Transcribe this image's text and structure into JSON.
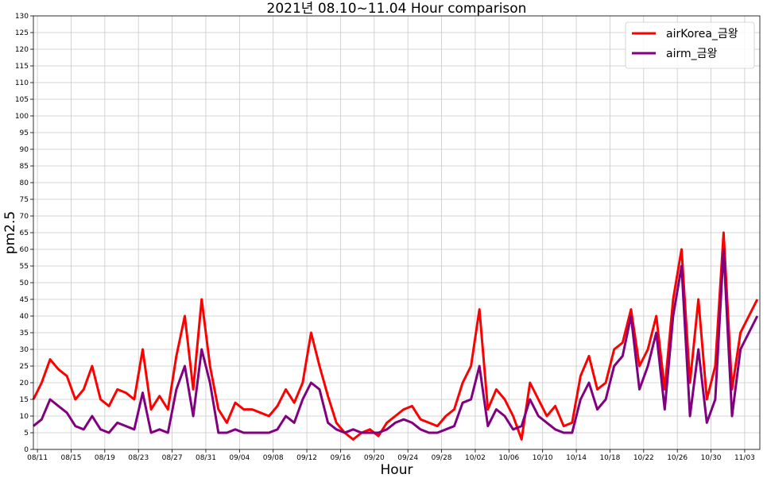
{
  "chart_data": {
    "type": "line",
    "title": "2021년 08.10~11.04 Hour comparison",
    "xlabel": "Hour",
    "ylabel": "pm2.5",
    "ylim": [
      0,
      130
    ],
    "yticks": [
      0,
      5,
      10,
      15,
      20,
      25,
      30,
      35,
      40,
      45,
      50,
      55,
      60,
      65,
      70,
      75,
      80,
      85,
      90,
      95,
      100,
      105,
      110,
      115,
      120,
      125,
      130
    ],
    "x_start": "08/10",
    "x_end": "11/04",
    "xticks": [
      "08/11",
      "08/15",
      "08/19",
      "08/23",
      "08/27",
      "08/31",
      "09/04",
      "09/08",
      "09/12",
      "09/16",
      "09/20",
      "09/24",
      "09/28",
      "10/02",
      "10/06",
      "10/10",
      "10/14",
      "10/18",
      "10/22",
      "10/26",
      "10/30",
      "11/03"
    ],
    "grid": true,
    "legend_position": "top-right",
    "series": [
      {
        "name": "airKorea_금왕",
        "color": "#ff0000",
        "x": [
          "08/10",
          "08/11",
          "08/12",
          "08/13",
          "08/14",
          "08/15",
          "08/16",
          "08/17",
          "08/18",
          "08/19",
          "08/20",
          "08/21",
          "08/22",
          "08/23",
          "08/24",
          "08/25",
          "08/26",
          "08/27",
          "08/28",
          "08/29",
          "08/30",
          "08/31",
          "09/01",
          "09/02",
          "09/03",
          "09/04",
          "09/05",
          "09/06",
          "09/07",
          "09/08",
          "09/09",
          "09/10",
          "09/11",
          "09/12",
          "09/13",
          "09/14",
          "09/15",
          "09/16",
          "09/17",
          "09/18",
          "09/19",
          "09/20",
          "09/21",
          "09/22",
          "09/23",
          "09/24",
          "09/25",
          "09/26",
          "09/27",
          "09/28",
          "09/29",
          "09/30",
          "10/01",
          "10/02",
          "10/03",
          "10/04",
          "10/05",
          "10/06",
          "10/07",
          "10/08",
          "10/09",
          "10/10",
          "10/11",
          "10/12",
          "10/13",
          "10/14",
          "10/15",
          "10/16",
          "10/17",
          "10/18",
          "10/19",
          "10/20",
          "10/21",
          "10/22",
          "10/23",
          "10/24",
          "10/25",
          "10/26",
          "10/27",
          "10/28",
          "10/29",
          "10/30",
          "10/31",
          "11/01",
          "11/02",
          "11/03",
          "11/04"
        ],
        "values": [
          15,
          20,
          27,
          24,
          22,
          15,
          18,
          25,
          15,
          13,
          18,
          17,
          15,
          30,
          12,
          16,
          12,
          28,
          40,
          18,
          45,
          25,
          12,
          8,
          14,
          12,
          12,
          11,
          10,
          13,
          18,
          14,
          20,
          35,
          25,
          16,
          8,
          5,
          3,
          5,
          6,
          4,
          8,
          10,
          12,
          13,
          9,
          8,
          7,
          10,
          12,
          20,
          25,
          42,
          12,
          18,
          15,
          10,
          3,
          20,
          15,
          10,
          13,
          7,
          8,
          22,
          28,
          18,
          20,
          30,
          32,
          42,
          25,
          30,
          40,
          18,
          45,
          60,
          20,
          45,
          15,
          25,
          65,
          18,
          35,
          40,
          45
        ]
      },
      {
        "name": "airm_금왕",
        "color": "#800080",
        "x": [
          "08/10",
          "08/11",
          "08/12",
          "08/13",
          "08/14",
          "08/15",
          "08/16",
          "08/17",
          "08/18",
          "08/19",
          "08/20",
          "08/21",
          "08/22",
          "08/23",
          "08/24",
          "08/25",
          "08/26",
          "08/27",
          "08/28",
          "08/29",
          "08/30",
          "08/31",
          "09/01",
          "09/02",
          "09/03",
          "09/04",
          "09/05",
          "09/06",
          "09/07",
          "09/08",
          "09/09",
          "09/10",
          "09/11",
          "09/12",
          "09/13",
          "09/14",
          "09/15",
          "09/16",
          "09/17",
          "09/18",
          "09/19",
          "09/20",
          "09/21",
          "09/22",
          "09/23",
          "09/24",
          "09/25",
          "09/26",
          "09/27",
          "09/28",
          "09/29",
          "09/30",
          "10/01",
          "10/02",
          "10/03",
          "10/04",
          "10/05",
          "10/06",
          "10/07",
          "10/08",
          "10/09",
          "10/10",
          "10/11",
          "10/12",
          "10/13",
          "10/14",
          "10/15",
          "10/16",
          "10/17",
          "10/18",
          "10/19",
          "10/20",
          "10/21",
          "10/22",
          "10/23",
          "10/24",
          "10/25",
          "10/26",
          "10/27",
          "10/28",
          "10/29",
          "10/30",
          "10/31",
          "11/01",
          "11/02",
          "11/03",
          "11/04"
        ],
        "values": [
          7,
          9,
          15,
          13,
          11,
          7,
          6,
          10,
          6,
          5,
          8,
          7,
          6,
          17,
          5,
          6,
          5,
          18,
          25,
          10,
          30,
          20,
          5,
          5,
          6,
          5,
          5,
          5,
          5,
          6,
          10,
          8,
          15,
          20,
          18,
          8,
          6,
          5,
          6,
          5,
          5,
          5,
          6,
          8,
          9,
          8,
          6,
          5,
          5,
          6,
          7,
          14,
          15,
          25,
          7,
          12,
          10,
          6,
          7,
          15,
          10,
          8,
          6,
          5,
          5,
          15,
          20,
          12,
          15,
          25,
          28,
          40,
          18,
          25,
          35,
          12,
          40,
          55,
          10,
          30,
          8,
          15,
          60,
          10,
          30,
          35,
          40
        ]
      }
    ]
  }
}
